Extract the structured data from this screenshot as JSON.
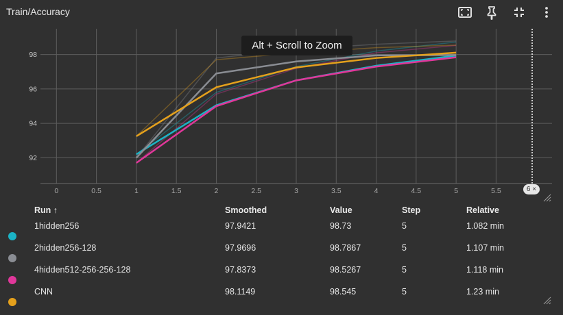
{
  "header": {
    "title": "Train/Accuracy"
  },
  "tooltip": "Alt + Scroll to Zoom",
  "step_marker_badge": "6 ×",
  "colors": {
    "background": "#303030",
    "grid": "#5c5c5c",
    "run_colors": [
      "#1bb3c5",
      "#8a8d93",
      "#e0379a",
      "#e5a11c"
    ]
  },
  "chart_data": {
    "type": "line",
    "title": "Train/Accuracy",
    "x_ticks": [
      "0",
      "0.5",
      "1",
      "1.5",
      "2",
      "2.5",
      "3",
      "3.5",
      "4",
      "4.5",
      "5",
      "5.5"
    ],
    "y_ticks": [
      "92",
      "94",
      "96",
      "98"
    ],
    "xlim": [
      -0.2,
      6.2
    ],
    "ylim": [
      90.5,
      99.5
    ],
    "grid": true,
    "series": [
      {
        "name": "1hidden256",
        "x": [
          1,
          2,
          3,
          4,
          5
        ],
        "smoothed": [
          92.2,
          95.05,
          96.5,
          97.35,
          97.94
        ],
        "raw": [
          92.2,
          95.8,
          97.3,
          98.2,
          98.73
        ]
      },
      {
        "name": "2hidden256-128",
        "x": [
          1,
          2,
          3,
          4,
          5
        ],
        "smoothed": [
          92.0,
          96.9,
          97.6,
          97.95,
          97.97
        ],
        "raw": [
          92.0,
          97.8,
          98.3,
          98.6,
          98.79
        ]
      },
      {
        "name": "4hidden512-256-256-128",
        "x": [
          1,
          2,
          3,
          4,
          5
        ],
        "smoothed": [
          91.7,
          95.0,
          96.5,
          97.3,
          97.84
        ],
        "raw": [
          91.7,
          95.7,
          97.2,
          98.1,
          98.53
        ]
      },
      {
        "name": "CNN",
        "x": [
          1,
          2,
          3,
          4,
          5
        ],
        "smoothed": [
          93.25,
          96.1,
          97.25,
          97.8,
          98.11
        ],
        "raw": [
          93.25,
          97.7,
          98.1,
          98.4,
          98.55
        ]
      }
    ]
  },
  "table": {
    "headers": {
      "run": "Run ↑",
      "smoothed": "Smoothed",
      "value": "Value",
      "step": "Step",
      "relative": "Relative"
    },
    "rows": [
      {
        "run": "1hidden256",
        "smoothed": "97.9421",
        "value": "98.73",
        "step": "5",
        "relative": "1.082 min"
      },
      {
        "run": "2hidden256-128",
        "smoothed": "97.9696",
        "value": "98.7867",
        "step": "5",
        "relative": "1.107 min"
      },
      {
        "run": "4hidden512-256-256-128",
        "smoothed": "97.8373",
        "value": "98.5267",
        "step": "5",
        "relative": "1.118 min"
      },
      {
        "run": "CNN",
        "smoothed": "98.1149",
        "value": "98.545",
        "step": "5",
        "relative": "1.23 min"
      }
    ]
  }
}
